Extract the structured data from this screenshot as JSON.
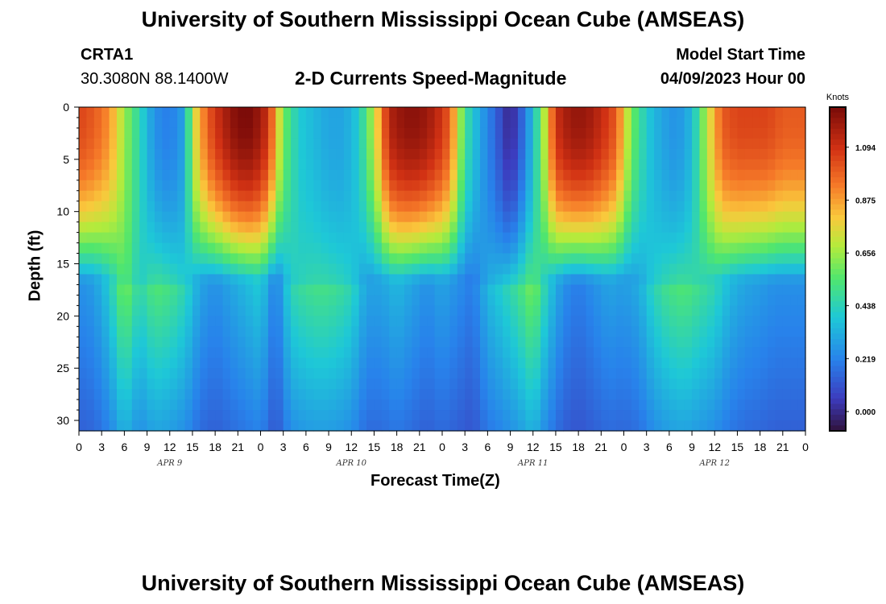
{
  "page": {
    "title_top": "University of Southern Mississippi Ocean Cube (AMSEAS)",
    "title_bottom": "University of Southern Mississippi Ocean Cube (AMSEAS)",
    "station_id": "CRTA1",
    "station_coords": "30.3080N  88.1400W",
    "model_start_label": "Model Start Time",
    "model_start_value": "04/09/2023 Hour 00"
  },
  "chart_data": {
    "type": "heatmap",
    "title": "2-D Currents Speed-Magnitude",
    "xlabel": "Forecast Time(Z)",
    "ylabel": "Depth (ft)",
    "colorbar_label": "Knots",
    "x_tick_labels": [
      "0",
      "3",
      "6",
      "9",
      "12",
      "15",
      "18",
      "21",
      "0",
      "3",
      "6",
      "9",
      "12",
      "15",
      "18",
      "21",
      "0",
      "3",
      "6",
      "9",
      "12",
      "15",
      "18",
      "21",
      "0",
      "3",
      "6",
      "9",
      "12",
      "15",
      "18",
      "21",
      "0"
    ],
    "x_range_hours": [
      0,
      96
    ],
    "day_labels": [
      "APR 9",
      "APR 10",
      "APR 11",
      "APR 12"
    ],
    "y_ticks": [
      0,
      5,
      10,
      15,
      20,
      25,
      30
    ],
    "y_range_ft": [
      0,
      31
    ],
    "colorbar_ticks": [
      "1.094",
      "0.875",
      "0.656",
      "0.438",
      "0.219",
      "0.000"
    ],
    "color_range_knots": [
      -0.08,
      1.26
    ],
    "surface_speed_by_hour": [
      [
        0,
        1.05
      ],
      [
        2,
        1.0
      ],
      [
        4,
        0.9
      ],
      [
        6,
        0.65
      ],
      [
        8,
        0.45
      ],
      [
        10,
        0.25
      ],
      [
        12,
        0.2
      ],
      [
        14,
        0.3
      ],
      [
        15,
        0.7
      ],
      [
        17,
        1.0
      ],
      [
        19,
        1.15
      ],
      [
        21,
        1.25
      ],
      [
        23,
        1.25
      ],
      [
        25,
        1.1
      ],
      [
        27,
        0.6
      ],
      [
        29,
        0.4
      ],
      [
        31,
        0.35
      ],
      [
        33,
        0.3
      ],
      [
        35,
        0.3
      ],
      [
        37,
        0.4
      ],
      [
        39,
        0.7
      ],
      [
        41,
        1.15
      ],
      [
        43,
        1.22
      ],
      [
        45,
        1.22
      ],
      [
        47,
        1.15
      ],
      [
        49,
        1.0
      ],
      [
        51,
        0.5
      ],
      [
        53,
        0.3
      ],
      [
        55,
        0.15
      ],
      [
        57,
        -0.02
      ],
      [
        59,
        0.2
      ],
      [
        61,
        0.55
      ],
      [
        63,
        1.1
      ],
      [
        65,
        1.2
      ],
      [
        67,
        1.2
      ],
      [
        69,
        1.12
      ],
      [
        71,
        1.0
      ],
      [
        73,
        0.6
      ],
      [
        75,
        0.4
      ],
      [
        77,
        0.3
      ],
      [
        79,
        0.25
      ],
      [
        81,
        0.35
      ],
      [
        83,
        0.7
      ],
      [
        85,
        1.0
      ],
      [
        87,
        1.05
      ],
      [
        89,
        1.05
      ],
      [
        91,
        1.05
      ],
      [
        93,
        1.0
      ],
      [
        96,
        1.0
      ]
    ],
    "lower_layer_speed_by_hour": [
      [
        0,
        0.25
      ],
      [
        2,
        0.28
      ],
      [
        4,
        0.4
      ],
      [
        6,
        0.62
      ],
      [
        8,
        0.45
      ],
      [
        10,
        0.55
      ],
      [
        12,
        0.52
      ],
      [
        14,
        0.45
      ],
      [
        16,
        0.3
      ],
      [
        18,
        0.25
      ],
      [
        20,
        0.3
      ],
      [
        22,
        0.35
      ],
      [
        24,
        0.4
      ],
      [
        26,
        0.2
      ],
      [
        28,
        0.45
      ],
      [
        30,
        0.5
      ],
      [
        32,
        0.52
      ],
      [
        34,
        0.5
      ],
      [
        36,
        0.45
      ],
      [
        38,
        0.3
      ],
      [
        40,
        0.3
      ],
      [
        42,
        0.35
      ],
      [
        44,
        0.3
      ],
      [
        46,
        0.25
      ],
      [
        48,
        0.3
      ],
      [
        50,
        0.25
      ],
      [
        52,
        0.2
      ],
      [
        54,
        0.35
      ],
      [
        56,
        0.42
      ],
      [
        58,
        0.5
      ],
      [
        60,
        0.62
      ],
      [
        62,
        0.4
      ],
      [
        64,
        0.25
      ],
      [
        66,
        0.2
      ],
      [
        68,
        0.25
      ],
      [
        70,
        0.3
      ],
      [
        72,
        0.28
      ],
      [
        74,
        0.32
      ],
      [
        76,
        0.45
      ],
      [
        78,
        0.52
      ],
      [
        80,
        0.55
      ],
      [
        82,
        0.5
      ],
      [
        84,
        0.45
      ],
      [
        86,
        0.35
      ],
      [
        88,
        0.3
      ],
      [
        90,
        0.28
      ],
      [
        92,
        0.25
      ],
      [
        94,
        0.25
      ],
      [
        96,
        0.25
      ]
    ]
  }
}
